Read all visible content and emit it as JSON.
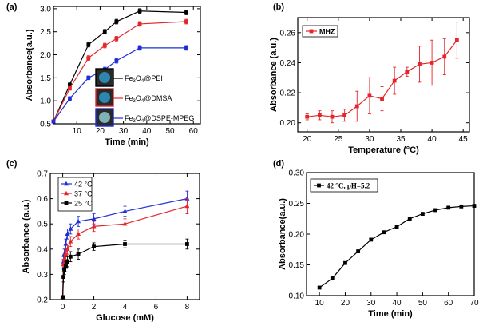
{
  "chart_data": [
    {
      "panel": "(a)",
      "type": "line",
      "xlabel": "Time (min)",
      "ylabel": "Absorbance(a.u.)",
      "xlim": [
        0,
        63
      ],
      "ylim": [
        0.5,
        3.05
      ],
      "xticks": [
        10,
        20,
        30,
        40,
        50,
        60
      ],
      "yticks": [
        0.5,
        1.0,
        1.5,
        2.0,
        2.5,
        3.0
      ],
      "ytick_labels": [
        "0.5",
        "1.0",
        "1.5",
        "2.0",
        "2.5",
        "3.0"
      ],
      "x": [
        0,
        7,
        15,
        22,
        27,
        37,
        57
      ],
      "series": [
        {
          "name": "Fe3O4@PEI",
          "name_main": "Fe",
          "name_sub1": "3",
          "name_mid": "O",
          "name_sub2": "4",
          "name_tail": "@PEI",
          "color": "#000000",
          "values": [
            0.55,
            1.35,
            2.22,
            2.5,
            2.72,
            2.95,
            2.92
          ],
          "err": [
            0.03,
            0.04,
            0.05,
            0.05,
            0.05,
            0.05,
            0.05
          ]
        },
        {
          "name": "Fe3O4@DMSA",
          "name_main": "Fe",
          "name_sub1": "3",
          "name_mid": "O",
          "name_sub2": "4",
          "name_tail": "@DMSA",
          "color": "#e4262a",
          "values": [
            0.55,
            1.27,
            1.93,
            2.2,
            2.35,
            2.67,
            2.72
          ],
          "err": [
            0.03,
            0.04,
            0.05,
            0.05,
            0.05,
            0.05,
            0.05
          ]
        },
        {
          "name": "Fe3O4@DSPE-MPEG",
          "name_main": "Fe",
          "name_sub1": "3",
          "name_mid": "O",
          "name_sub2": "4",
          "name_tail": "@DSPE-MPEG",
          "color": "#1d2ed6",
          "values": [
            0.55,
            1.05,
            1.5,
            1.68,
            1.87,
            2.15,
            2.15
          ],
          "err": [
            0.03,
            0.04,
            0.04,
            0.05,
            0.05,
            0.05,
            0.05
          ]
        }
      ],
      "legend_location": "bottom-right"
    },
    {
      "panel": "(b)",
      "type": "line",
      "xlabel": "Temperature (°C)",
      "ylabel": "Absorbance (a.u.)",
      "xlim": [
        18.5,
        46
      ],
      "ylim": [
        0.194,
        0.27
      ],
      "xticks": [
        20,
        25,
        30,
        35,
        40,
        45
      ],
      "yticks": [
        0.2,
        0.22,
        0.24,
        0.26
      ],
      "ytick_labels": [
        "0.20",
        "0.22",
        "0.24",
        "0.26"
      ],
      "series": [
        {
          "name": "MHZ",
          "color": "#e4262a",
          "x": [
            20,
            22,
            24,
            26,
            28,
            30,
            32,
            34,
            36,
            38,
            40,
            42,
            44
          ],
          "values": [
            0.204,
            0.205,
            0.204,
            0.205,
            0.211,
            0.218,
            0.216,
            0.228,
            0.234,
            0.239,
            0.24,
            0.244,
            0.255
          ],
          "err": [
            0.002,
            0.003,
            0.004,
            0.004,
            0.01,
            0.012,
            0.008,
            0.009,
            0.003,
            0.012,
            0.015,
            0.012,
            0.012
          ]
        }
      ],
      "legend_location": "top-left"
    },
    {
      "panel": "(c)",
      "type": "line",
      "xlabel": "Glucose (mM)",
      "ylabel": "Absorbance (a.u.)",
      "xlim": [
        -0.8,
        8.8
      ],
      "ylim": [
        0.2,
        0.7
      ],
      "xticks": [
        0,
        2,
        4,
        6,
        8
      ],
      "yticks": [
        0.2,
        0.3,
        0.4,
        0.5,
        0.6,
        0.7
      ],
      "ytick_labels": [
        "0.2",
        "0.3",
        "0.4",
        "0.5",
        "0.6",
        "0.7"
      ],
      "x": [
        0,
        0.05,
        0.1,
        0.2,
        0.3,
        0.5,
        1,
        2,
        4,
        8
      ],
      "series": [
        {
          "name": "42 °C",
          "color": "#1d2ed6",
          "values": [
            0.21,
            0.35,
            0.38,
            0.42,
            0.46,
            0.48,
            0.51,
            0.52,
            0.55,
            0.6
          ],
          "err": [
            0.005,
            0.02,
            0.02,
            0.02,
            0.02,
            0.02,
            0.02,
            0.02,
            0.02,
            0.03
          ]
        },
        {
          "name": "37 °C",
          "color": "#e4262a",
          "values": [
            0.21,
            0.34,
            0.36,
            0.38,
            0.4,
            0.43,
            0.46,
            0.49,
            0.5,
            0.57
          ],
          "err": [
            0.005,
            0.02,
            0.02,
            0.02,
            0.02,
            0.02,
            0.02,
            0.02,
            0.02,
            0.03
          ]
        },
        {
          "name": "25 °C",
          "color": "#000000",
          "values": [
            0.21,
            0.29,
            0.32,
            0.33,
            0.35,
            0.37,
            0.38,
            0.41,
            0.42,
            0.42
          ],
          "err": [
            0.005,
            0.02,
            0.02,
            0.02,
            0.02,
            0.02,
            0.02,
            0.015,
            0.015,
            0.02
          ]
        }
      ],
      "legend_location": "top-left"
    },
    {
      "panel": "(d)",
      "type": "line",
      "xlabel": "Time (min)",
      "ylabel": "Absorbance(a.u.)",
      "xlim": [
        5,
        70
      ],
      "ylim": [
        0.1,
        0.3
      ],
      "xticks": [
        10,
        20,
        30,
        40,
        50,
        60,
        70
      ],
      "yticks": [
        0.1,
        0.15,
        0.2,
        0.25,
        0.3
      ],
      "ytick_labels": [
        "0.10",
        "0.15",
        "0.20",
        "0.25",
        "0.30"
      ],
      "series": [
        {
          "name": "42 °C, pH=5.2",
          "color": "#000000",
          "x": [
            10,
            15,
            20,
            25,
            30,
            35,
            40,
            45,
            50,
            55,
            60,
            65,
            70
          ],
          "values": [
            0.113,
            0.128,
            0.153,
            0.172,
            0.191,
            0.203,
            0.212,
            0.225,
            0.233,
            0.239,
            0.243,
            0.245,
            0.246
          ]
        }
      ],
      "legend_location": "top-left"
    }
  ],
  "panel_labels": [
    "(a)",
    "(b)",
    "(c)",
    "(d)"
  ]
}
